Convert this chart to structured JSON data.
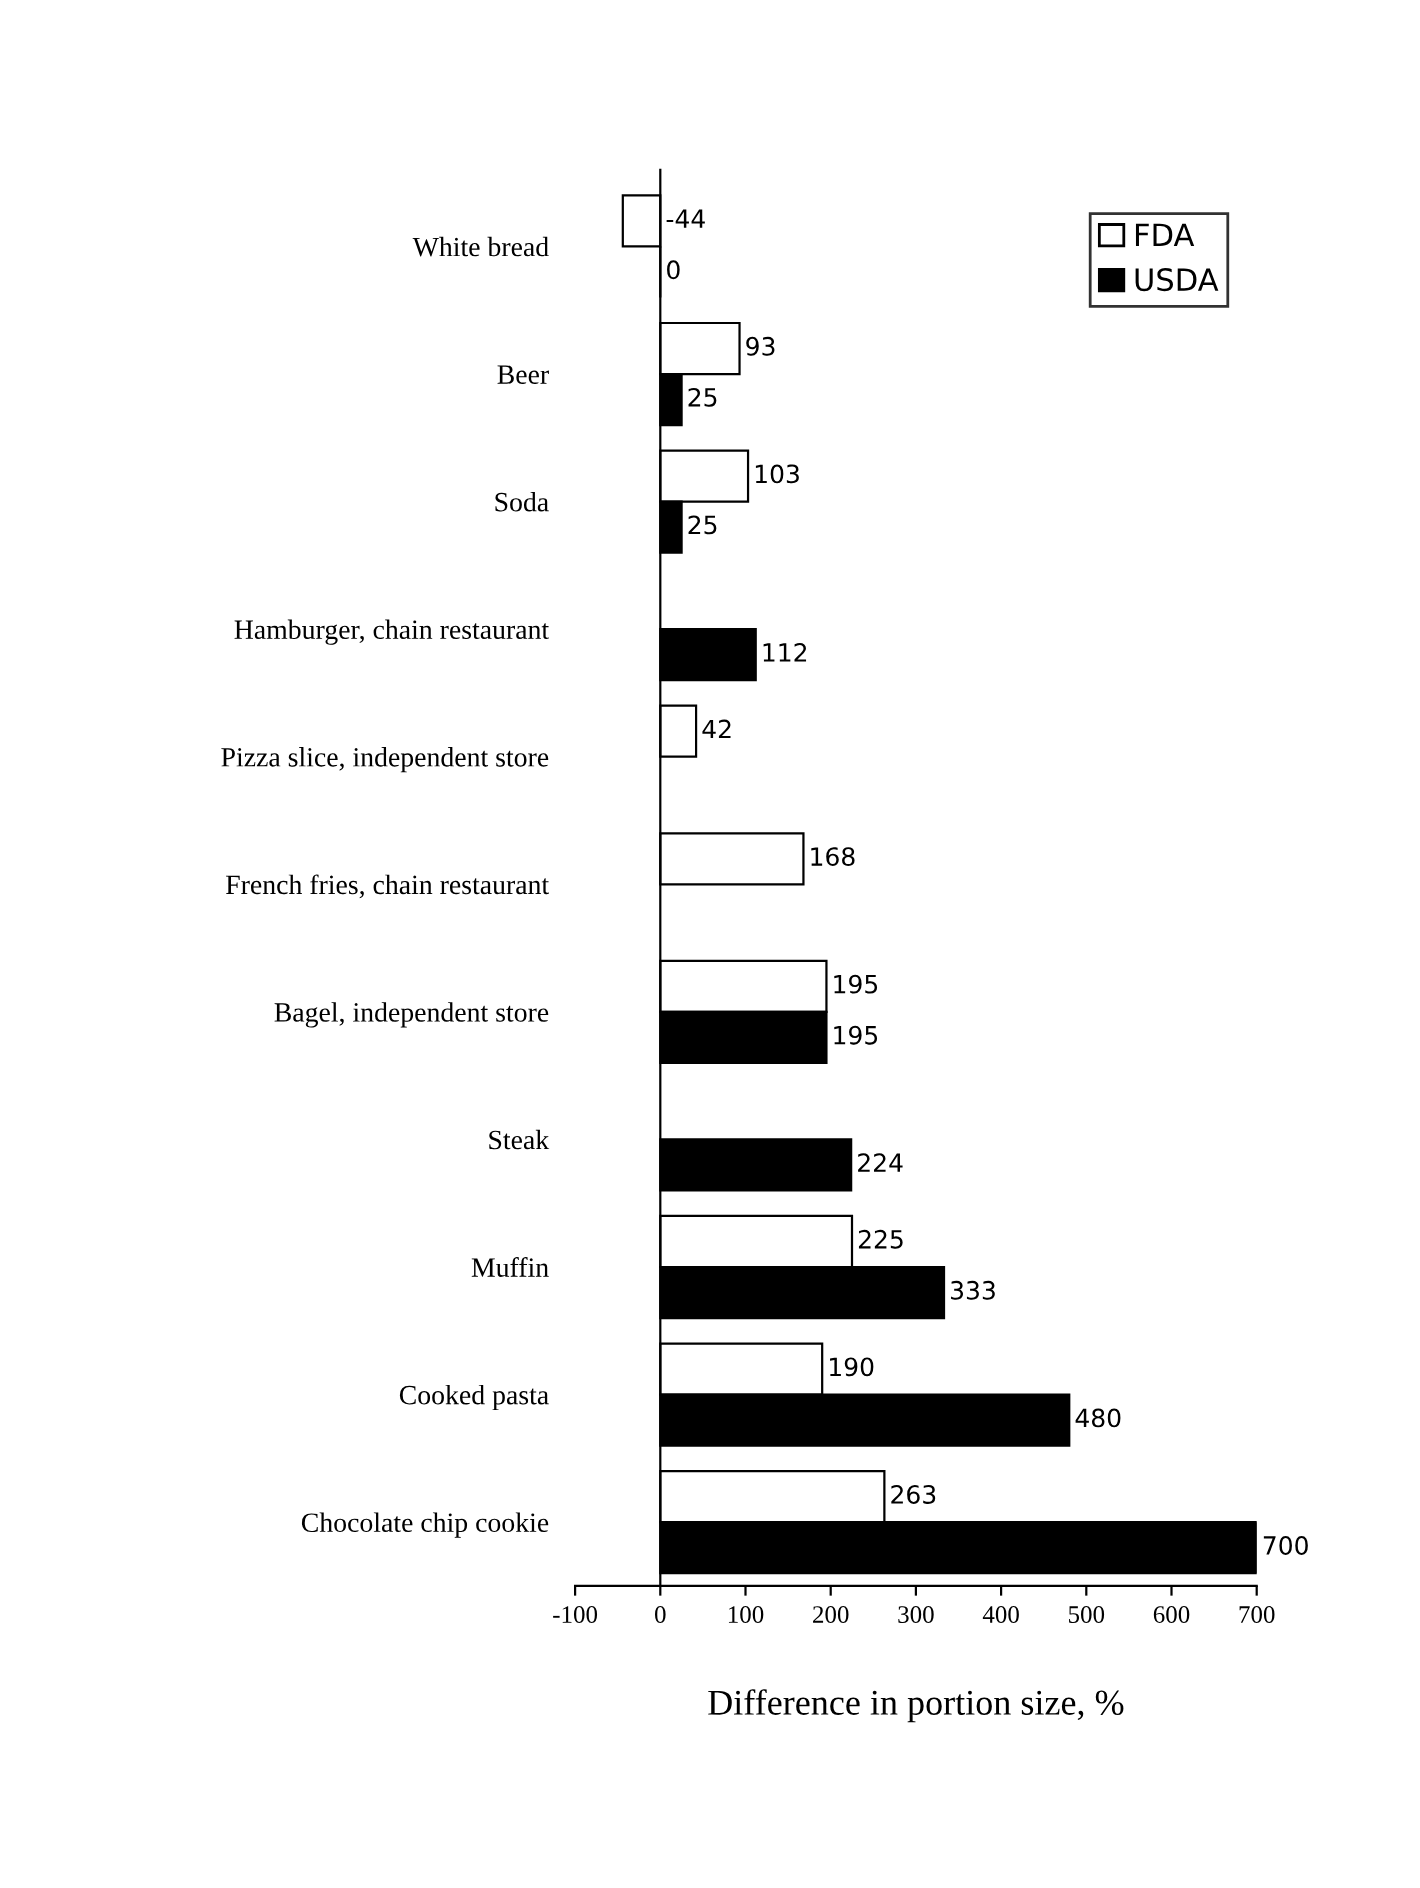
{
  "chart_data": {
    "type": "bar",
    "orientation": "horizontal",
    "xlabel": "Difference in portion size, %",
    "categories": [
      "White bread",
      "Beer",
      "Soda",
      "Hamburger, chain restaurant",
      "Pizza slice, independent store",
      "French fries, chain restaurant",
      "Bagel, independent store",
      "Steak",
      "Muffin",
      "Cooked pasta",
      "Chocolate chip cookie"
    ],
    "series": [
      {
        "name": "FDA",
        "color": "#ffffff",
        "values": [
          -44,
          93,
          103,
          null,
          42,
          168,
          195,
          null,
          225,
          190,
          263
        ]
      },
      {
        "name": "USDA",
        "color": "#000000",
        "values": [
          0,
          25,
          25,
          112,
          null,
          null,
          195,
          224,
          333,
          480,
          700
        ]
      }
    ],
    "xlim": [
      -100,
      700
    ],
    "xticks": [
      -100,
      0,
      100,
      200,
      300,
      400,
      500,
      600,
      700
    ],
    "data_labels": true,
    "legend": "top right"
  }
}
